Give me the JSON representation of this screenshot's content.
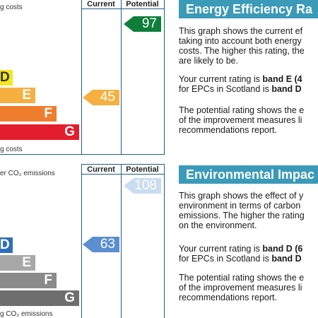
{
  "energy_chart": {
    "caption_top": "g costs",
    "caption_bottom": "g costs",
    "col_current": "Current",
    "col_potential": "Potential",
    "bands": [
      {
        "letter": "D",
        "color": "#f4e61f",
        "text_color": "#333333"
      },
      {
        "letter": "E",
        "color": "#f5b041"
      },
      {
        "letter": "F",
        "color": "#ef7d2e"
      },
      {
        "letter": "G",
        "color": "#e31d2b"
      }
    ],
    "current": {
      "value": "45",
      "color": "#f5b041"
    },
    "potential": {
      "value": "97",
      "color": "#0e7f3b"
    }
  },
  "env_chart": {
    "caption_top": "er CO₂ emissions",
    "caption_bottom": "g CO₂ emissions",
    "col_current": "Current",
    "col_potential": "Potential",
    "bands": [
      {
        "letter": "D",
        "color": "#2f6fb7"
      },
      {
        "letter": "E",
        "color": "#a8a8a8"
      },
      {
        "letter": "F",
        "color": "#8a8a8a"
      },
      {
        "letter": "G",
        "color": "#6e6e6e"
      }
    ],
    "current": {
      "value": "63",
      "color": "#5b8fcf"
    },
    "potential": {
      "value": "108",
      "color": "#c9dcf0",
      "text_color": "#ffffff"
    }
  },
  "energy_text": {
    "title": "Energy Efficiency Ra",
    "p1": [
      "This graph shows the current ef",
      "taking into account both energy",
      "costs. The higher this rating, the",
      "are likely to be."
    ],
    "p2a_prefix": "Your current rating is ",
    "p2a_bold": "band E (4",
    "p2b_prefix": "for EPCs in Scotland is ",
    "p2b_bold": "band D",
    "p3": [
      "The potential rating shows the e",
      "of the improvement measures li",
      "recommendations report."
    ]
  },
  "env_text": {
    "title": "Environmental Impac",
    "p1": [
      "This graph shows the effect of y",
      "environment in terms of carbon",
      "emissions. The higher the rating",
      "on the environment."
    ],
    "p2a_prefix": "Your current rating is ",
    "p2a_bold": "band D (6",
    "p2b_prefix": "for EPCs in Scotland is ",
    "p2b_bold": "band D",
    "p3": [
      "The potential rating shows the e",
      "of the improvement measures li",
      "recommendations report."
    ]
  }
}
